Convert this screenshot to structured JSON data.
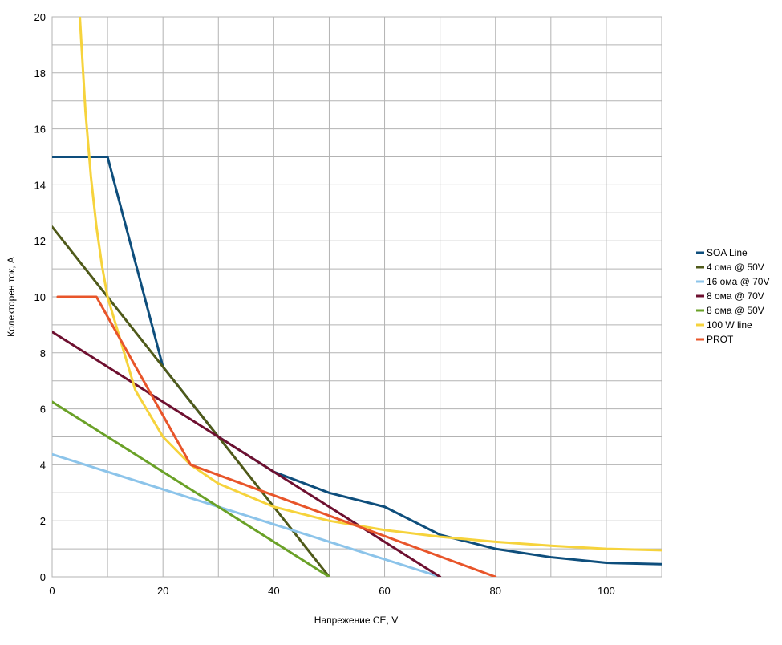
{
  "chart_data": {
    "type": "line",
    "title": "",
    "xlabel": "Напрежение CE, V",
    "ylabel": "Колекторен ток, A",
    "xlim": [
      0,
      110
    ],
    "ylim": [
      0,
      20
    ],
    "xticks": [
      0,
      20,
      40,
      60,
      80,
      100
    ],
    "yticks": [
      0,
      2,
      4,
      6,
      8,
      10,
      12,
      14,
      16,
      18,
      20
    ],
    "x_minor_step": 10,
    "y_minor_step": 1,
    "grid": true,
    "legend_position": "right",
    "series": [
      {
        "name": "SOA Line",
        "color": "#0e4e7c",
        "points": [
          [
            0,
            15
          ],
          [
            10,
            15
          ],
          [
            20,
            7.5
          ],
          [
            30,
            5
          ],
          [
            40,
            3.75
          ],
          [
            50,
            3
          ],
          [
            60,
            2.5
          ],
          [
            70,
            1.5
          ],
          [
            80,
            1
          ],
          [
            90,
            0.7
          ],
          [
            100,
            0.5
          ],
          [
            110,
            0.45
          ]
        ]
      },
      {
        "name": "4 ома @ 50V",
        "color": "#4f5a1a",
        "points": [
          [
            0,
            12.5
          ],
          [
            50,
            0
          ]
        ]
      },
      {
        "name": "16 ома @ 70V",
        "color": "#8cc4ea",
        "points": [
          [
            0,
            4.375
          ],
          [
            70,
            0
          ]
        ]
      },
      {
        "name": "8 ома @ 70V",
        "color": "#6e1030",
        "points": [
          [
            0,
            8.75
          ],
          [
            70,
            0
          ]
        ]
      },
      {
        "name": "8 ома @ 50V",
        "color": "#6aa127",
        "points": [
          [
            0,
            6.25
          ],
          [
            50,
            0
          ]
        ]
      },
      {
        "name": "100 W line",
        "color": "#f6d33c",
        "points": [
          [
            5,
            20
          ],
          [
            6,
            16.67
          ],
          [
            7,
            14.29
          ],
          [
            8,
            12.5
          ],
          [
            9,
            11.11
          ],
          [
            10,
            10
          ],
          [
            15,
            6.67
          ],
          [
            20,
            5
          ],
          [
            25,
            4
          ],
          [
            30,
            3.33
          ],
          [
            40,
            2.5
          ],
          [
            50,
            2
          ],
          [
            60,
            1.67
          ],
          [
            70,
            1.43
          ],
          [
            80,
            1.25
          ],
          [
            90,
            1.11
          ],
          [
            100,
            1
          ],
          [
            110,
            0.95
          ]
        ]
      },
      {
        "name": "PROT",
        "color": "#e8552a",
        "points": [
          [
            1,
            10
          ],
          [
            8,
            10
          ],
          [
            25,
            4
          ],
          [
            80,
            0
          ]
        ]
      }
    ]
  }
}
